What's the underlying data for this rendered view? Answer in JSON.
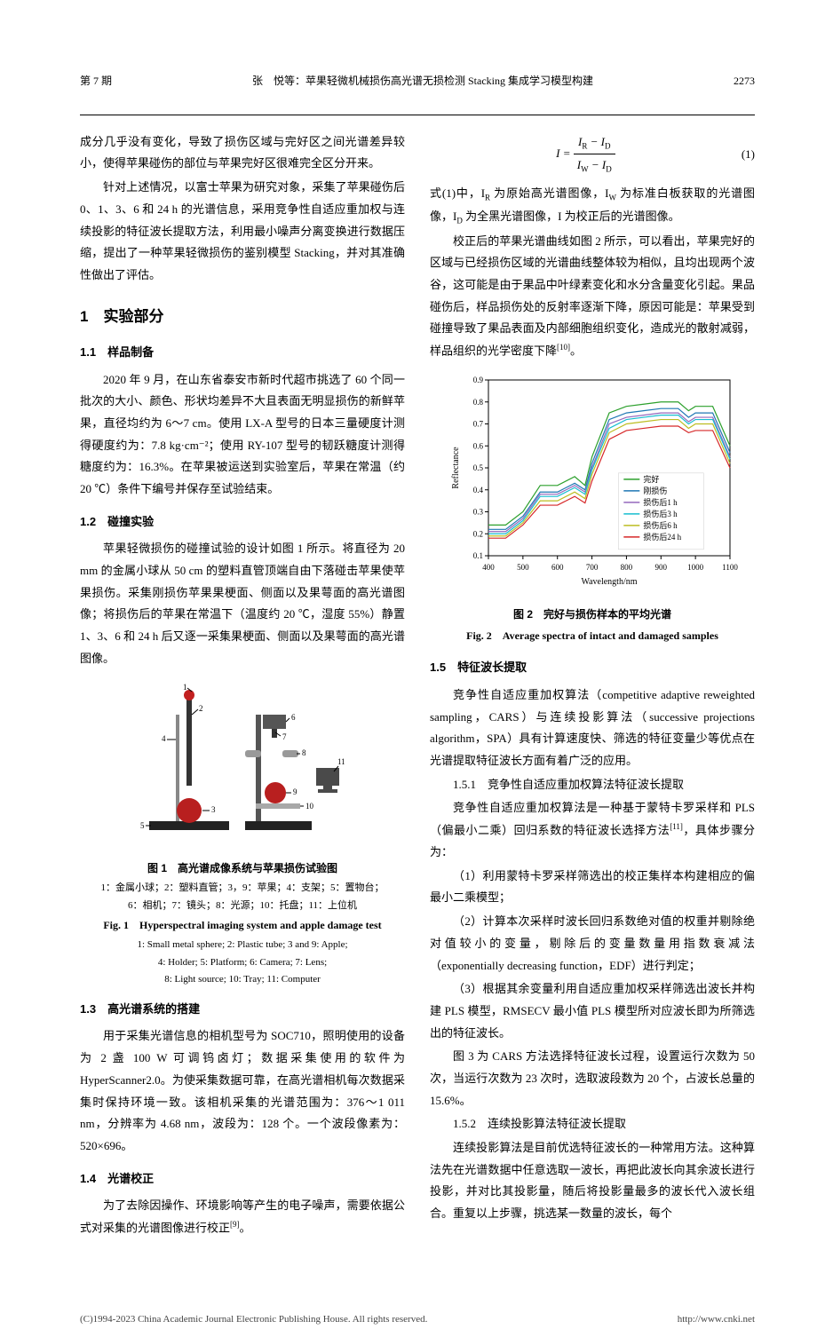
{
  "header": {
    "issue": "第 7 期",
    "running_title": "张　悦等：苹果轻微机械损伤高光谱无损检测 Stacking 集成学习模型构建",
    "page_number": "2273"
  },
  "body": {
    "para_intro_a": "成分几乎没有变化，导致了损伤区域与完好区之间光谱差异较小，使得苹果碰伤的部位与苹果完好区很难完全区分开来。",
    "para_intro_b": "针对上述情况，以富士苹果为研究对象，采集了苹果碰伤后 0、1、3、6 和 24 h 的光谱信息，采用竞争性自适应重加权与连续投影的特征波长提取方法，利用最小噪声分离变换进行数据压缩，提出了一种苹果轻微损伤的鉴别模型 Stacking，并对其准确性做出了评估。",
    "sec1_title": "1　实验部分",
    "sec1_1_title": "1.1　样品制备",
    "sec1_1_p": "2020 年 9 月，在山东省泰安市新时代超市挑选了 60 个同一批次的大小、颜色、形状均差异不大且表面无明显损伤的新鲜苹果，直径均约为 6～7 cm。使用 LX-A 型号的日本三量硬度计测得硬度约为：7.8 kg·cm⁻²；使用 RY-107 型号的韧跃糖度计测得糖度约为：16.3%。在苹果被运送到实验室后，苹果在常温（约 20 ℃）条件下编号并保存至试验结束。",
    "sec1_2_title": "1.2　碰撞实验",
    "sec1_2_p": "苹果轻微损伤的碰撞试验的设计如图 1 所示。将直径为 20 mm 的金属小球从 50 cm 的塑料直管顶端自由下落碰击苹果使苹果损伤。采集刚损伤苹果果梗面、侧面以及果萼面的高光谱图像；将损伤后的苹果在常温下（温度约 20 ℃，湿度 55%）静置 1、3、6 和 24 h 后又逐一采集果梗面、侧面以及果萼面的高光谱图像。",
    "fig1": {
      "caption_cn": "图 1　高光谱成像系统与苹果损伤试验图",
      "labels_cn_line1": "1：金属小球；2：塑料直管；3，9：苹果；4：支架；5：置物台；",
      "labels_cn_line2": "6：相机；7：镜头；8：光源；10：托盘；11：上位机",
      "caption_en": "Fig. 1　Hyperspectral imaging system and apple damage test",
      "labels_en_line1": "1: Small metal sphere; 2: Plastic tube; 3 and 9: Apple;",
      "labels_en_line2": "4: Holder; 5: Platform; 6: Camera; 7: Lens;",
      "labels_en_line3": "8: Light source; 10: Tray; 11: Computer",
      "colors": {
        "ball": "#c22020",
        "apple": "#b81f1f",
        "tube": "#333333",
        "platform": "#222222",
        "holder": "#888888",
        "camera": "#555555",
        "tray": "#a8a8a8",
        "monitor": "#4a4a4a"
      }
    },
    "sec1_3_title": "1.3　高光谱系统的搭建",
    "sec1_3_p": "用于采集光谱信息的相机型号为 SOC710，照明使用的设备为 2 盏 100 W 可调钨卤灯；数据采集使用的软件为 HyperScanner2.0。为使采集数据可靠，在高光谱相机每次数据采集时保持环境一致。该相机采集的光谱范围为：376～1 011 nm，分辨率为 4.68 nm，波段为：128 个。一个波段像素为：520×696。",
    "sec1_4_title": "1.4　光谱校正",
    "sec1_4_p": "为了去除因操作、环境影响等产生的电子噪声，需要依据公式对采集的光谱图像进行校正",
    "sec1_4_ref": "[9]",
    "eq1": {
      "num": "(1)"
    },
    "sec1_4_after_a": "式(1)中，I",
    "sec1_4_after_a2": " 为原始高光谱图像，I",
    "sec1_4_after_a3": " 为标准白板获取的光谱图像，I",
    "sec1_4_after_a4": " 为全黑光谱图像，I 为校正后的光谱图像。",
    "sec1_4_after_b": "校正后的苹果光谱曲线如图 2 所示，可以看出，苹果完好的区域与已经损伤区域的光谱曲线整体较为相似，且均出现两个波谷，这可能是由于果品中叶绿素变化和水分含量变化引起。果品碰伤后，样品损伤处的反射率逐渐下降，原因可能是：苹果受到碰撞导致了果品表面及内部细胞组织变化，造成光的散射减弱，样品组织的光学密度下降",
    "sec1_4_after_b_ref": "[10]",
    "fig2": {
      "caption_cn": "图 2　完好与损伤样本的平均光谱",
      "caption_en": "Fig. 2　Average spectra of intact and damaged samples",
      "chart": {
        "xlabel": "Wavelength/nm",
        "ylabel": "Reflectance",
        "xlim": [
          400,
          1100
        ],
        "ylim": [
          0.1,
          0.9
        ],
        "xticks": [
          400,
          500,
          600,
          700,
          800,
          900,
          1000,
          1100
        ],
        "yticks": [
          0.1,
          0.2,
          0.3,
          0.4,
          0.5,
          0.6,
          0.7,
          0.8,
          0.9
        ],
        "x_sample": [
          400,
          450,
          500,
          550,
          600,
          650,
          680,
          700,
          750,
          800,
          850,
          900,
          950,
          980,
          1000,
          1050,
          1100
        ],
        "series": [
          {
            "name": "完好",
            "color": "#2ca02c",
            "y": [
              0.24,
              0.24,
              0.3,
              0.42,
              0.42,
              0.46,
              0.42,
              0.55,
              0.75,
              0.78,
              0.79,
              0.8,
              0.8,
              0.76,
              0.78,
              0.78,
              0.6
            ]
          },
          {
            "name": "刚损伤",
            "color": "#1f77b4",
            "y": [
              0.22,
              0.22,
              0.28,
              0.39,
              0.39,
              0.43,
              0.4,
              0.52,
              0.72,
              0.75,
              0.76,
              0.77,
              0.77,
              0.73,
              0.75,
              0.75,
              0.57
            ]
          },
          {
            "name": "损伤后1 h",
            "color": "#9467bd",
            "y": [
              0.21,
              0.21,
              0.27,
              0.38,
              0.38,
              0.42,
              0.39,
              0.5,
              0.7,
              0.73,
              0.74,
              0.75,
              0.75,
              0.71,
              0.73,
              0.73,
              0.55
            ]
          },
          {
            "name": "损伤后3 h",
            "color": "#17becf",
            "y": [
              0.2,
              0.2,
              0.26,
              0.37,
              0.37,
              0.41,
              0.38,
              0.49,
              0.68,
              0.72,
              0.73,
              0.74,
              0.74,
              0.7,
              0.72,
              0.72,
              0.54
            ]
          },
          {
            "name": "损伤后6 h",
            "color": "#bcbd22",
            "y": [
              0.19,
              0.19,
              0.25,
              0.35,
              0.35,
              0.39,
              0.36,
              0.47,
              0.66,
              0.7,
              0.71,
              0.72,
              0.72,
              0.68,
              0.7,
              0.7,
              0.52
            ]
          },
          {
            "name": "损伤后24 h",
            "color": "#d62728",
            "y": [
              0.18,
              0.18,
              0.24,
              0.33,
              0.33,
              0.37,
              0.34,
              0.44,
              0.63,
              0.67,
              0.68,
              0.69,
              0.69,
              0.66,
              0.67,
              0.67,
              0.5
            ]
          }
        ],
        "label_fontsize": 10,
        "tick_fontsize": 9,
        "line_width": 1.2,
        "background": "#ffffff",
        "axis_color": "#000000"
      }
    },
    "sec1_5_title": "1.5　特征波长提取",
    "sec1_5_p": "竞争性自适应重加权算法（competitive adaptive reweighted sampling，CARS）与连续投影算法（successive projections algorithm，SPA）具有计算速度快、筛选的特征变量少等优点在光谱提取特征波长方面有着广泛的应用。",
    "sec1_5_1_title": "1.5.1　竞争性自适应重加权算法特征波长提取",
    "sec1_5_1_p1": "竞争性自适应重加权算法是一种基于蒙特卡罗采样和 PLS（偏最小二乘）回归系数的特征波长选择方法",
    "sec1_5_1_ref": "[11]",
    "sec1_5_1_p1b": "，具体步骤分为：",
    "sec1_5_1_step1": "（1）利用蒙特卡罗采样筛选出的校正集样本构建相应的偏最小二乘模型；",
    "sec1_5_1_step2": "（2）计算本次采样时波长回归系数绝对值的权重并剔除绝对值较小的变量，剔除后的变量数量用指数衰减法（exponentially decreasing function，EDF）进行判定；",
    "sec1_5_1_step3": "（3）根据其余变量利用自适应重加权采样筛选出波长并构建 PLS 模型，RMSECV 最小值 PLS 模型所对应波长即为所筛选出的特征波长。",
    "sec1_5_1_p2": "图 3 为 CARS 方法选择特征波长过程，设置运行次数为 50 次，当运行次数为 23 次时，选取波段数为 20 个，占波长总量的 15.6%。",
    "sec1_5_2_title": "1.5.2　连续投影算法特征波长提取",
    "sec1_5_2_p": "连续投影算法是目前优选特征波长的一种常用方法。这种算法先在光谱数据中任意选取一波长，再把此波长向其余波长进行投影，并对比其投影量，随后将投影量最多的波长代入波长组合。重复以上步骤，挑选某一数量的波长，每个"
  },
  "footer": {
    "left": "(C)1994-2023 China Academic Journal Electronic Publishing House. All rights reserved.",
    "right": "http://www.cnki.net"
  }
}
